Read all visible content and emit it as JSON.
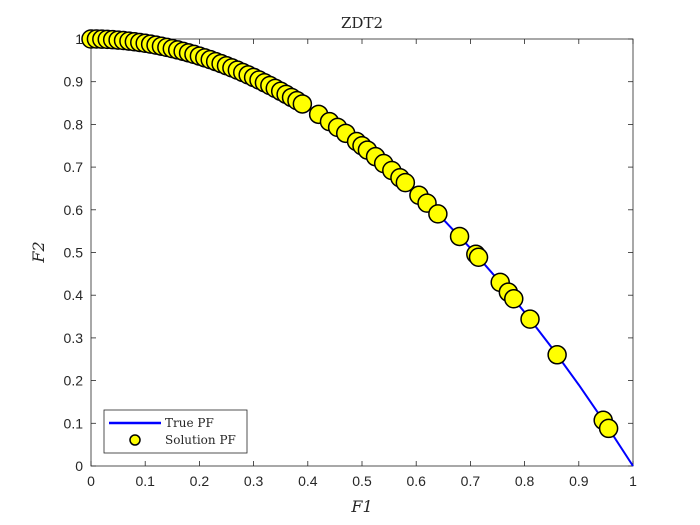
{
  "chart_data": {
    "type": "scatter",
    "title": "ZDT2",
    "xlabel": "F1",
    "ylabel": "F2",
    "xlim": [
      0,
      1
    ],
    "ylim": [
      0,
      1
    ],
    "x_ticks": [
      "0",
      "0.1",
      "0.2",
      "0.3",
      "0.4",
      "0.5",
      "0.6",
      "0.7",
      "0.8",
      "0.9",
      "1"
    ],
    "y_ticks": [
      "0",
      "0.1",
      "0.2",
      "0.3",
      "0.4",
      "0.5",
      "0.6",
      "0.7",
      "0.8",
      "0.9",
      "1"
    ],
    "grid": false,
    "legend_position": "bottom-left",
    "series": [
      {
        "name": "True PF",
        "kind": "line",
        "color": "#0000ff",
        "formula": "F2 = 1 - F1^2",
        "x": [
          0,
          0.05,
          0.1,
          0.15,
          0.2,
          0.25,
          0.3,
          0.35,
          0.4,
          0.45,
          0.5,
          0.55,
          0.6,
          0.65,
          0.7,
          0.75,
          0.8,
          0.85,
          0.9,
          0.95,
          1
        ],
        "y": [
          1,
          0.9975,
          0.99,
          0.9775,
          0.96,
          0.9375,
          0.91,
          0.8775,
          0.84,
          0.7975,
          0.75,
          0.6975,
          0.64,
          0.5775,
          0.51,
          0.4375,
          0.36,
          0.2775,
          0.19,
          0.0975,
          0
        ]
      },
      {
        "name": "Solution PF",
        "kind": "scatter",
        "marker_face": "#ffff00",
        "marker_edge": "#000000",
        "x": [
          0.0,
          0.01,
          0.02,
          0.03,
          0.04,
          0.05,
          0.06,
          0.07,
          0.08,
          0.09,
          0.1,
          0.11,
          0.12,
          0.13,
          0.14,
          0.15,
          0.16,
          0.17,
          0.18,
          0.19,
          0.2,
          0.21,
          0.22,
          0.23,
          0.24,
          0.25,
          0.26,
          0.27,
          0.28,
          0.29,
          0.3,
          0.31,
          0.32,
          0.33,
          0.34,
          0.35,
          0.36,
          0.37,
          0.38,
          0.39,
          0.42,
          0.44,
          0.455,
          0.47,
          0.49,
          0.5,
          0.51,
          0.525,
          0.54,
          0.555,
          0.57,
          0.58,
          0.605,
          0.62,
          0.64,
          0.68,
          0.71,
          0.715,
          0.755,
          0.77,
          0.78,
          0.81,
          0.86,
          0.945,
          0.955
        ],
        "y": [
          1.0,
          0.9999,
          0.9996,
          0.9991,
          0.9984,
          0.9975,
          0.9964,
          0.9951,
          0.9936,
          0.9919,
          0.99,
          0.9879,
          0.9856,
          0.9831,
          0.9804,
          0.9775,
          0.9744,
          0.9711,
          0.9676,
          0.9639,
          0.96,
          0.9559,
          0.9516,
          0.9471,
          0.9424,
          0.9375,
          0.9324,
          0.9271,
          0.9216,
          0.9159,
          0.91,
          0.9039,
          0.8976,
          0.8911,
          0.8844,
          0.8775,
          0.8704,
          0.8631,
          0.8556,
          0.8479,
          0.8236,
          0.8064,
          0.793,
          0.7791,
          0.7599,
          0.75,
          0.7399,
          0.7244,
          0.7084,
          0.692,
          0.6751,
          0.6636,
          0.634,
          0.6156,
          0.5904,
          0.5376,
          0.4959,
          0.4888,
          0.43,
          0.4071,
          0.3916,
          0.3439,
          0.2604,
          0.107,
          0.088
        ]
      }
    ]
  }
}
